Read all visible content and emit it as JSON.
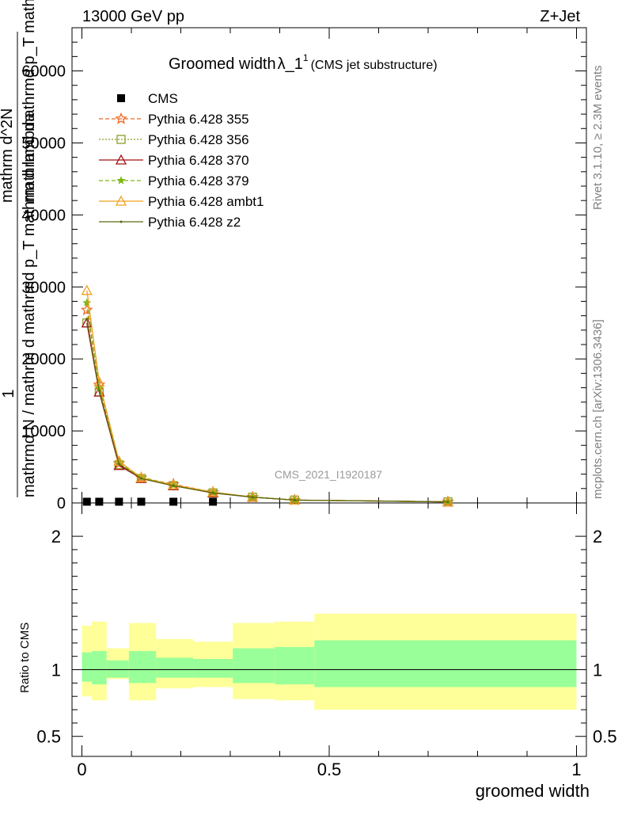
{
  "header": {
    "energy": "13000 GeV pp",
    "process": "Z+Jet",
    "title_main": "Groomed width",
    "title_lambda": "λ_1",
    "title_sup": "1",
    "title_sub": "(CMS jet substructure)",
    "analysis": "CMS_2021_I1920187",
    "side_rivet": "Rivet 3.1.10, ≥ 2.3M events",
    "side_mcplots": "mcplots.cern.ch [arXiv:1306.3436]"
  },
  "colors": {
    "p355": "#ee6a20",
    "p356": "#8c9d20",
    "p370": "#a01010",
    "p379": "#7fb818",
    "ambt1": "#f0a020",
    "z2": "#5a6a10",
    "band_inner": "#99ff99",
    "band_outer": "#ffff99"
  },
  "ylabel": {
    "line1": "1",
    "line2": "mathrmd N / mathrm d mathrmd p_T mathrm d lambda",
    "num": "mathrm d^2N",
    "den": "mathrm d mathrmd p_T mathrm d lambda"
  },
  "ratio": {
    "ylabel": "Ratio to CMS"
  },
  "xlabel": "groomed width",
  "chart_data": [
    {
      "type": "line",
      "panel": "main",
      "title": "Groomed width λ_1^1 (CMS jet substructure)",
      "xlabel": "groomed width",
      "ylabel": "1/N dN / dp_T dλ",
      "xlim": [
        -0.02,
        1.02
      ],
      "ylim": [
        0,
        66000
      ],
      "yticks": [
        0,
        10000,
        20000,
        30000,
        40000,
        50000,
        60000
      ],
      "ytick_labels": [
        "0",
        "10000",
        "20000",
        "30000",
        "40000",
        "50000",
        "60000"
      ],
      "xticks": [
        0,
        0.5,
        1
      ],
      "xtick_labels": [
        "0",
        "0.5",
        "1"
      ],
      "legend_position": "top-left",
      "x": [
        0.01,
        0.035,
        0.075,
        0.12,
        0.185,
        0.265,
        0.345,
        0.43,
        0.74
      ],
      "cms": {
        "name": "CMS",
        "x": [
          0.01,
          0.035,
          0.075,
          0.12,
          0.185,
          0.265
        ],
        "y": [
          60,
          60,
          60,
          60,
          60,
          60
        ]
      },
      "series": [
        {
          "name": "Pythia 6.428 355",
          "key": "p355",
          "marker": "star",
          "y": [
            26800,
            16400,
            5500,
            3500,
            2600,
            1500,
            800,
            400,
            150
          ]
        },
        {
          "name": "Pythia 6.428 356",
          "key": "p356",
          "marker": "square",
          "y": [
            25000,
            15400,
            5300,
            3400,
            2400,
            1400,
            800,
            400,
            150
          ]
        },
        {
          "name": "Pythia 6.428 370",
          "key": "p370",
          "marker": "triangle",
          "y": [
            25000,
            15400,
            5200,
            3400,
            2400,
            1400,
            800,
            400,
            150
          ]
        },
        {
          "name": "Pythia 6.428 379",
          "key": "p379",
          "marker": "smallstar",
          "y": [
            27800,
            16000,
            5600,
            3600,
            2500,
            1500,
            800,
            400,
            150
          ]
        },
        {
          "name": "Pythia 6.428 ambt1",
          "key": "ambt1",
          "marker": "triangle",
          "y": [
            29500,
            16800,
            5800,
            3500,
            2500,
            1500,
            800,
            400,
            150
          ]
        },
        {
          "name": "Pythia 6.428 z2",
          "key": "z2",
          "marker": "dot",
          "y": [
            25500,
            15600,
            5400,
            3400,
            2400,
            1400,
            800,
            400,
            150
          ]
        }
      ]
    },
    {
      "type": "area",
      "panel": "ratio",
      "ylabel": "Ratio to CMS",
      "xlabel": "groomed width",
      "xlim": [
        -0.02,
        1.02
      ],
      "ylim": [
        0.35,
        2.25
      ],
      "yticks": [
        0.5,
        1,
        2
      ],
      "ytick_labels": [
        "0.5",
        "1",
        "2"
      ],
      "xticks": [
        0,
        0.5,
        1
      ],
      "xtick_labels": [
        "0",
        "0.5",
        "1"
      ],
      "reference": 1,
      "bins": [
        {
          "x0": 0.0,
          "x1": 0.02,
          "inner": [
            0.91,
            1.13
          ],
          "outer": [
            0.8,
            1.33
          ]
        },
        {
          "x0": 0.02,
          "x1": 0.05,
          "inner": [
            0.89,
            1.14
          ],
          "outer": [
            0.77,
            1.36
          ]
        },
        {
          "x0": 0.05,
          "x1": 0.095,
          "inner": [
            0.94,
            1.07
          ],
          "outer": [
            0.93,
            1.16
          ]
        },
        {
          "x0": 0.095,
          "x1": 0.15,
          "inner": [
            0.9,
            1.14
          ],
          "outer": [
            0.77,
            1.35
          ]
        },
        {
          "x0": 0.15,
          "x1": 0.225,
          "inner": [
            0.94,
            1.09
          ],
          "outer": [
            0.86,
            1.23
          ]
        },
        {
          "x0": 0.225,
          "x1": 0.305,
          "inner": [
            0.94,
            1.08
          ],
          "outer": [
            0.87,
            1.21
          ]
        },
        {
          "x0": 0.305,
          "x1": 0.39,
          "inner": [
            0.9,
            1.16
          ],
          "outer": [
            0.78,
            1.35
          ]
        },
        {
          "x0": 0.39,
          "x1": 0.47,
          "inner": [
            0.89,
            1.17
          ],
          "outer": [
            0.77,
            1.36
          ]
        },
        {
          "x0": 0.47,
          "x1": 1.0,
          "inner": [
            0.87,
            1.22
          ],
          "outer": [
            0.7,
            1.42
          ]
        }
      ]
    }
  ]
}
